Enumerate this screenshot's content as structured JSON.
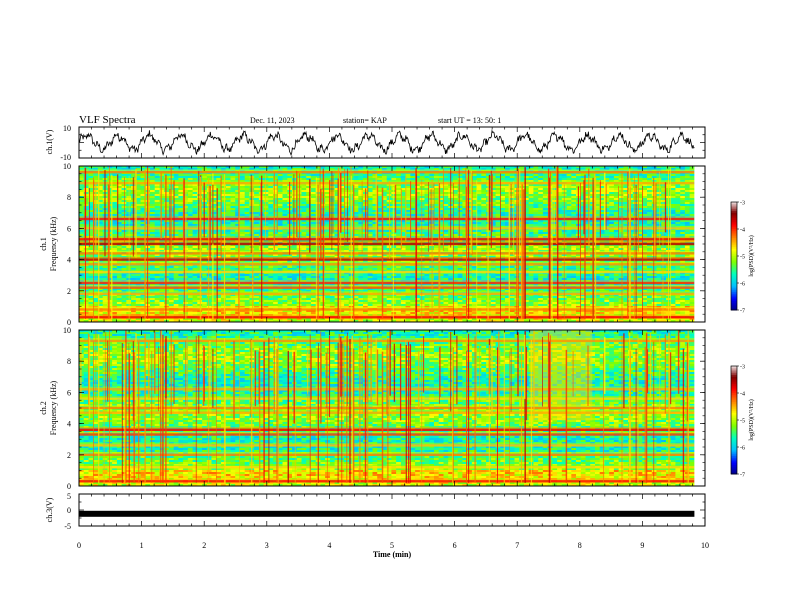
{
  "header": {
    "title": "VLF Spectra",
    "date": "Dec. 11, 2023",
    "station": "station= KAP",
    "start": "start  UT  =   13: 50: 1"
  },
  "colors": {
    "waveform": "#000000",
    "colormap": [
      "#00007f",
      "#0000ff",
      "#00bfff",
      "#00ffbf",
      "#7fff00",
      "#ffff00",
      "#ff7f00",
      "#ff0000",
      "#7f0000",
      "#ffffff"
    ]
  },
  "chart_data": [
    {
      "type": "line",
      "panel": "ch1",
      "ylabel": "ch.1(V)",
      "ylim": [
        -10,
        10
      ],
      "yticks": [
        "10",
        "-10"
      ],
      "xlim": [
        0,
        10
      ],
      "x_end": 9.83,
      "signal": {
        "base_period_min": 0.5,
        "amplitude_v": 4.5,
        "noise_v": 2.2
      }
    },
    {
      "type": "heatmap",
      "panel": "ch1-spectrogram",
      "ylabel_channel": "ch.1",
      "ylabel": "Frequency (kHz)",
      "ylim": [
        0,
        10
      ],
      "yticks": [
        "0",
        "2",
        "4",
        "6",
        "8",
        "10"
      ],
      "xlim": [
        0,
        10
      ],
      "x_end": 9.83,
      "colorbar": {
        "label": "log(PSD)(V²/Hz)",
        "range": [
          -7,
          -3
        ],
        "ticks": [
          "-3",
          "-4",
          "-5",
          "-6",
          "-7"
        ]
      },
      "bands_khz": [
        {
          "f": 0.3,
          "level": -3.6
        },
        {
          "f": 0.8,
          "level": -4.2
        },
        {
          "f": 1.8,
          "level": -4.4
        },
        {
          "f": 2.2,
          "level": -4.0
        },
        {
          "f": 2.5,
          "level": -3.8
        },
        {
          "f": 3.2,
          "level": -4.6
        },
        {
          "f": 3.7,
          "level": -4.3
        },
        {
          "f": 4.0,
          "level": -3.4
        },
        {
          "f": 4.4,
          "level": -4.2
        },
        {
          "f": 5.0,
          "level": -3.3
        },
        {
          "f": 5.3,
          "level": -3.6
        },
        {
          "f": 6.0,
          "level": -4.5
        },
        {
          "f": 6.6,
          "level": -3.7
        },
        {
          "f": 8.9,
          "level": -4.4
        },
        {
          "f": 9.6,
          "level": -4.2
        }
      ]
    },
    {
      "type": "heatmap",
      "panel": "ch2-spectrogram",
      "ylabel_channel": "ch.2",
      "ylabel": "Frequency (kHz)",
      "ylim": [
        0,
        10
      ],
      "yticks": [
        "0",
        "2",
        "4",
        "6",
        "8",
        "10"
      ],
      "xlim": [
        0,
        10
      ],
      "x_end": 9.83,
      "colorbar": {
        "label": "log(PSD)(V²/Hz)",
        "range": [
          -7,
          -3
        ],
        "ticks": [
          "-3",
          "-4",
          "-5",
          "-6",
          "-7"
        ]
      },
      "bands_khz": [
        {
          "f": 0.3,
          "level": -3.7
        },
        {
          "f": 1.2,
          "level": -4.6
        },
        {
          "f": 2.0,
          "level": -4.2
        },
        {
          "f": 2.6,
          "level": -4.5
        },
        {
          "f": 3.3,
          "level": -3.9
        },
        {
          "f": 3.6,
          "level": -3.6
        },
        {
          "f": 4.7,
          "level": -4.4
        },
        {
          "f": 5.0,
          "level": -4.2
        },
        {
          "f": 5.6,
          "level": -4.6
        },
        {
          "f": 6.2,
          "level": -4.4
        },
        {
          "f": 9.3,
          "level": -4.3
        }
      ]
    },
    {
      "type": "line",
      "panel": "ch3",
      "ylabel": "ch.3(V)",
      "ylim": [
        -5,
        5
      ],
      "yticks": [
        "5",
        "0",
        "-5"
      ],
      "xlim": [
        0,
        10
      ],
      "x_end": 9.83,
      "level_v": -1.2
    }
  ],
  "xaxis": {
    "label": "Time  (min)",
    "ticks": [
      "0",
      "1",
      "2",
      "3",
      "4",
      "5",
      "6",
      "7",
      "8",
      "9",
      "10"
    ]
  }
}
